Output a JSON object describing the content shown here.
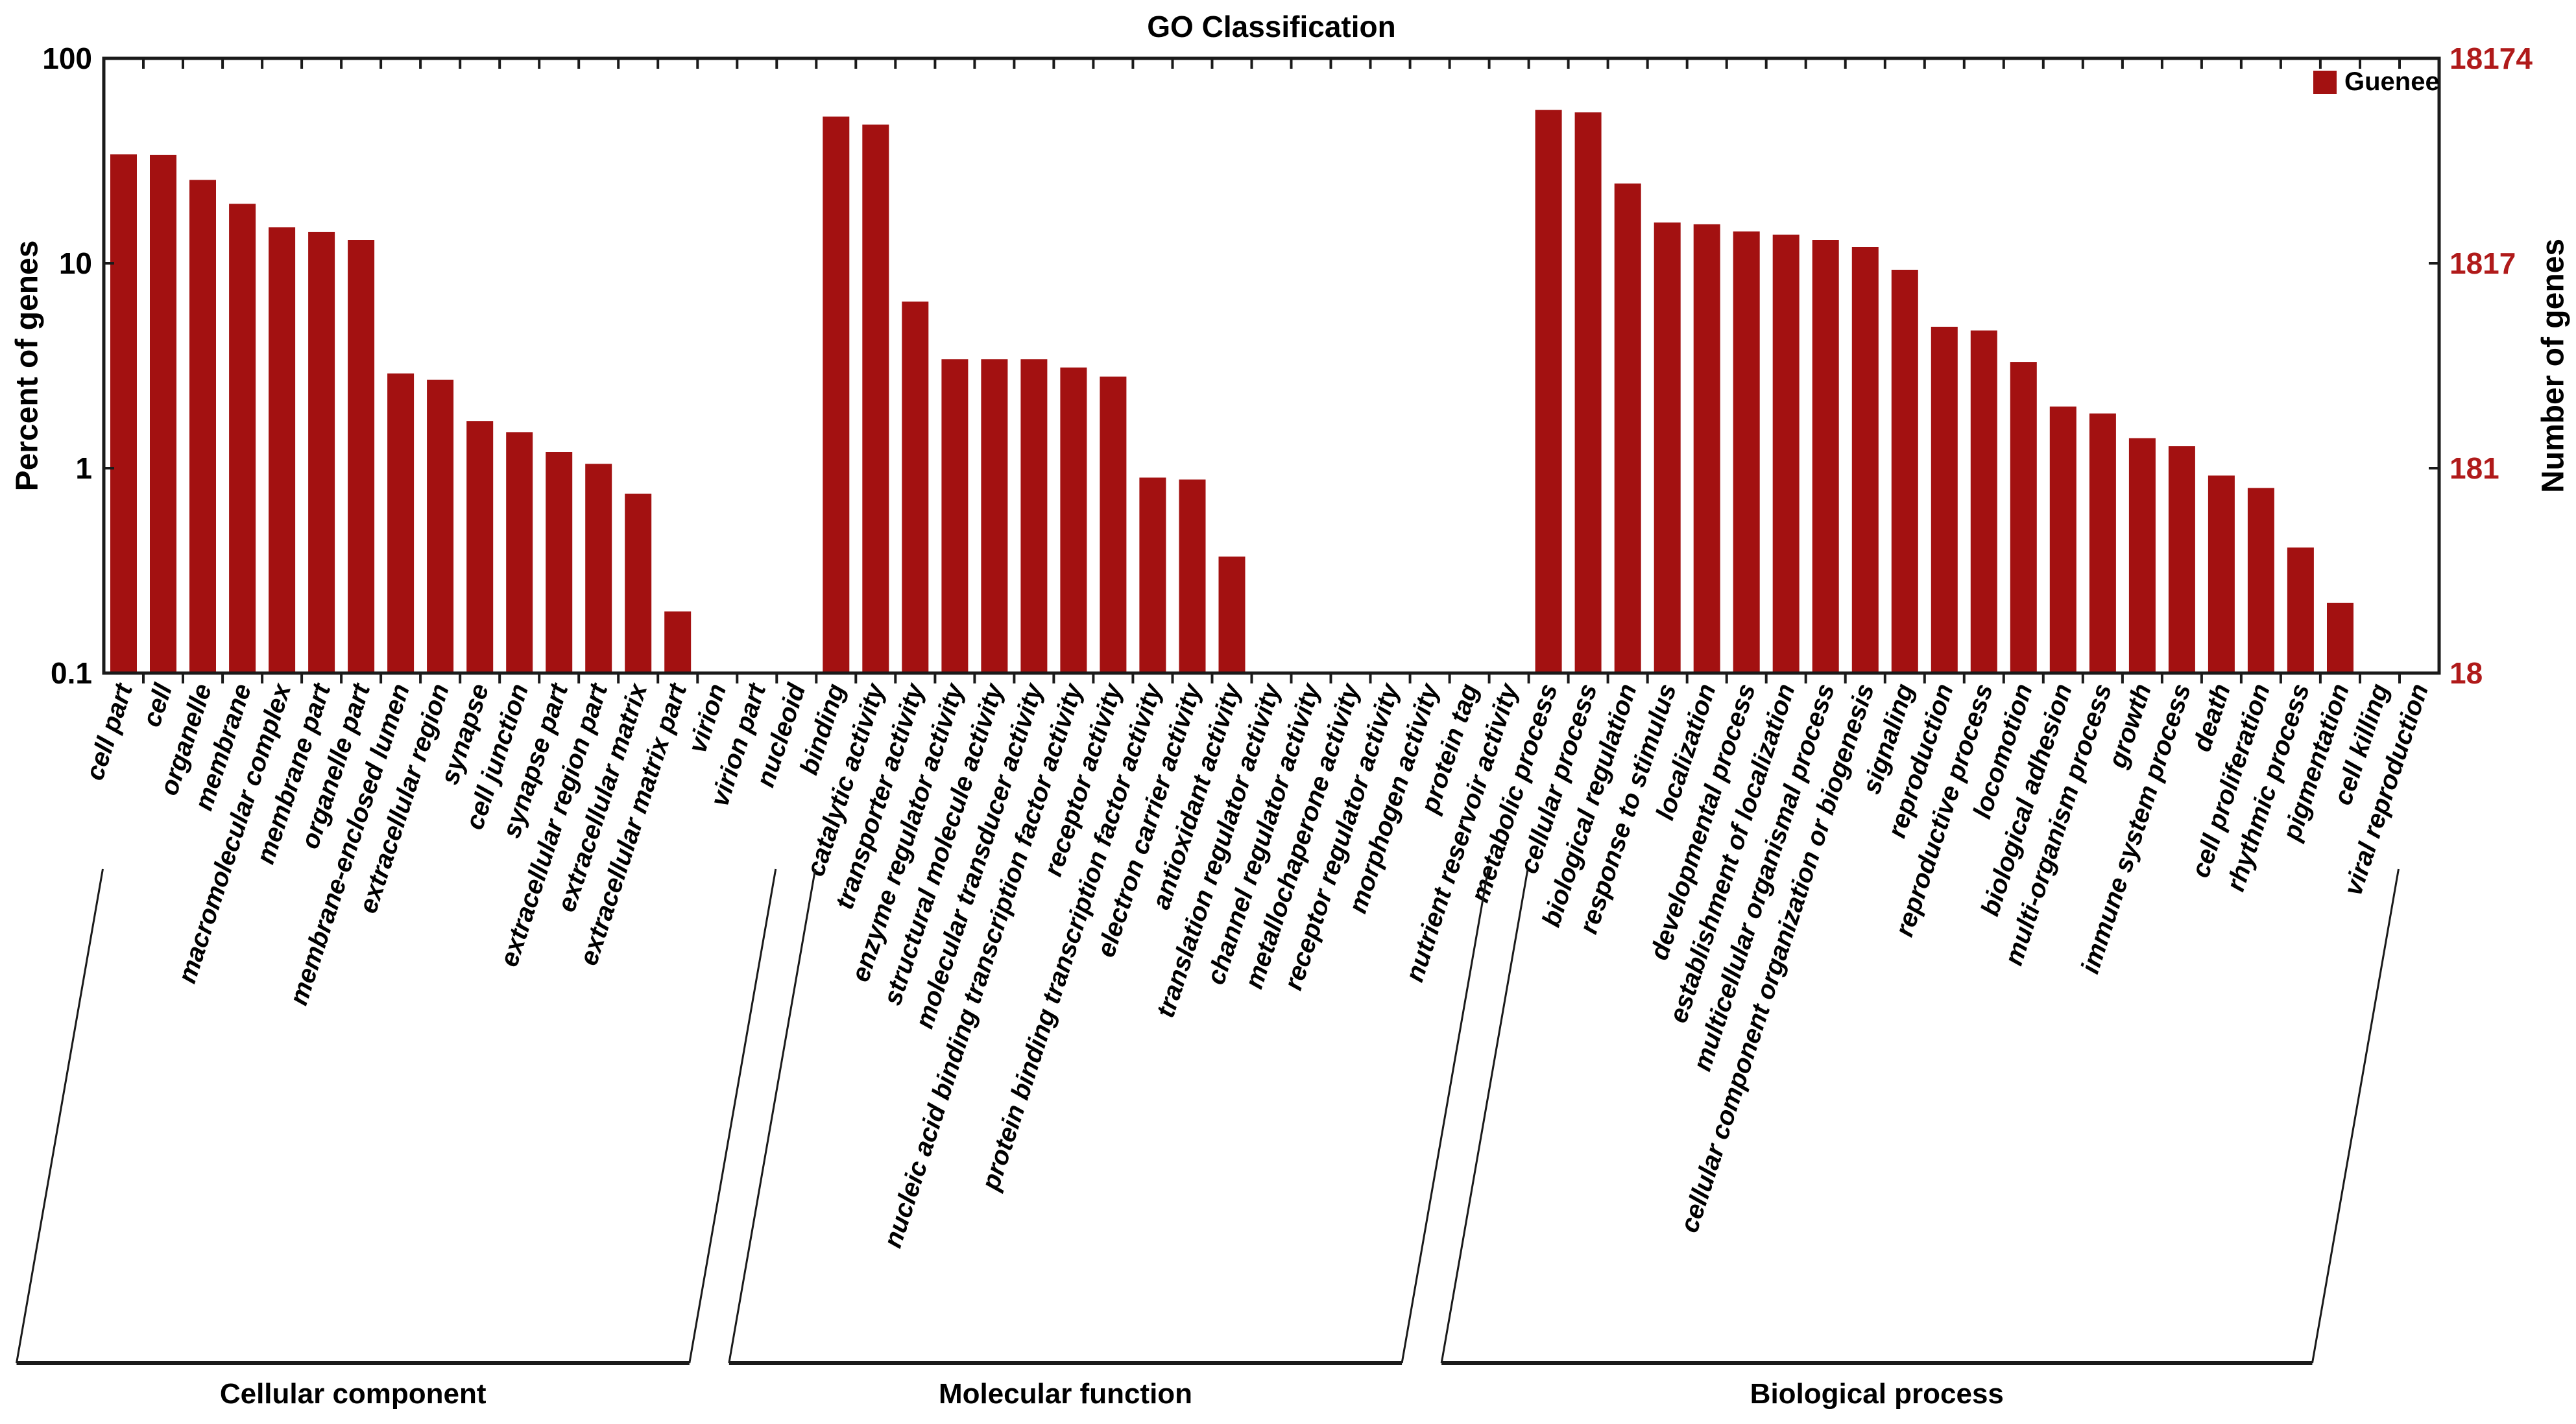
{
  "title": "GO Classification",
  "legend": {
    "label": "Guenee"
  },
  "axes": {
    "left": {
      "title": "Percent of genes",
      "tick_labels": [
        "100",
        "10",
        "1",
        "0.1"
      ],
      "tick_values": [
        100,
        10,
        1,
        0.1
      ]
    },
    "right": {
      "title": "Number of genes",
      "tick_labels": [
        "18174",
        "1817",
        "181",
        "18"
      ],
      "tick_values": [
        100,
        10,
        1,
        0.1
      ]
    }
  },
  "colors": {
    "bar": "#a31111",
    "right_axis_label": "#b01a1a",
    "axis_line": "#1a1a1a",
    "text": "#000000"
  },
  "chart_data": {
    "type": "bar",
    "y_scale": "log",
    "ylim": [
      0.1,
      100
    ],
    "ylabel_left": "Percent of genes",
    "ylabel_right": "Number of genes",
    "total_genes_right_axis_max": 18174,
    "legend_position": "top-right-inside",
    "grid": false,
    "groups": [
      {
        "name": "Cellular component",
        "categories": [
          "cell part",
          "cell",
          "organelle",
          "membrane",
          "macromolecular complex",
          "membrane part",
          "organelle part",
          "membrane-enclosed lumen",
          "extracellular region",
          "synapse",
          "cell junction",
          "synapse part",
          "extracellular region part",
          "extracellular matrix",
          "extracellular matrix part",
          "virion",
          "virion part",
          "nucleoid"
        ],
        "values": [
          34,
          33.8,
          25.5,
          19.5,
          15,
          14.2,
          13,
          2.9,
          2.7,
          1.7,
          1.5,
          1.2,
          1.05,
          0.75,
          0.2,
          0,
          0,
          0
        ]
      },
      {
        "name": "Molecular function",
        "categories": [
          "binding",
          "catalytic activity",
          "transporter activity",
          "enzyme regulator activity",
          "structural molecule activity",
          "molecular transducer activity",
          "nucleic acid binding transcription factor activity",
          "receptor activity",
          "protein binding transcription factor activity",
          "electron carrier activity",
          "antioxidant activity",
          "translation regulator activity",
          "channel regulator activity",
          "metallochaperone activity",
          "receptor regulator activity",
          "morphogen activity",
          "protein tag",
          "nutrient reservoir activity"
        ],
        "values": [
          52,
          47.5,
          6.5,
          3.4,
          3.4,
          3.4,
          3.1,
          2.8,
          0.9,
          0.88,
          0.37,
          0,
          0,
          0,
          0,
          0,
          0,
          0
        ]
      },
      {
        "name": "Biological process",
        "categories": [
          "metabolic process",
          "cellular process",
          "biological regulation",
          "response to stimulus",
          "localization",
          "developmental process",
          "establishment of localization",
          "multicellular organismal process",
          "cellular component organization or biogenesis",
          "signaling",
          "reproduction",
          "reproductive process",
          "locomotion",
          "biological adhesion",
          "multi-organism process",
          "growth",
          "immune system process",
          "death",
          "cell proliferation",
          "rhythmic process",
          "pigmentation",
          "cell killing",
          "viral reproduction"
        ],
        "values": [
          56,
          54.5,
          24.5,
          15.8,
          15.5,
          14.3,
          13.8,
          13.0,
          12.0,
          9.3,
          4.9,
          4.7,
          3.3,
          2.0,
          1.85,
          1.4,
          1.28,
          0.92,
          0.8,
          0.41,
          0.22,
          0,
          0
        ]
      }
    ]
  }
}
